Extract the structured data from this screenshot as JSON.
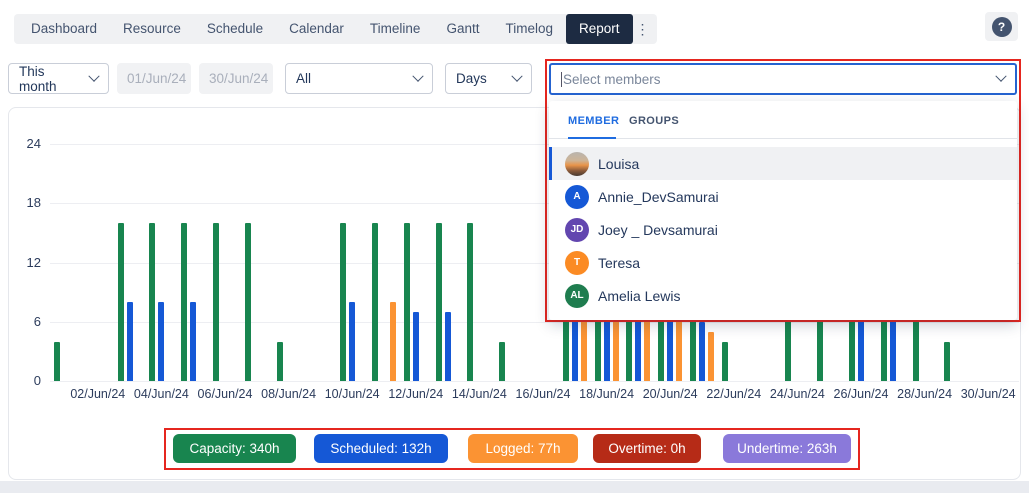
{
  "nav": {
    "tabs": [
      {
        "label": "Dashboard"
      },
      {
        "label": "Resource"
      },
      {
        "label": "Schedule"
      },
      {
        "label": "Calendar"
      },
      {
        "label": "Timeline"
      },
      {
        "label": "Gantt"
      },
      {
        "label": "Timelog"
      },
      {
        "label": "Report"
      }
    ],
    "active_tab": "Report",
    "more_icon": "⋮"
  },
  "help": {
    "icon": "?"
  },
  "filters": {
    "period": {
      "value": "This month"
    },
    "start_date": {
      "value": "01/Jun/24"
    },
    "end_date": {
      "value": "30/Jun/24"
    },
    "scope": {
      "value": "All"
    },
    "granularity": {
      "value": "Days"
    },
    "members": {
      "placeholder": "Select members"
    }
  },
  "member_dropdown": {
    "tabs": [
      {
        "label": "MEMBER"
      },
      {
        "label": "GROUPS"
      }
    ],
    "active_tab": "MEMBER",
    "members": [
      {
        "name": "Louisa",
        "avatar": "photo",
        "highlighted": true
      },
      {
        "name": "Annie_DevSamurai",
        "initials": "A",
        "color": "#1558d6"
      },
      {
        "name": "Joey _ Devsamurai",
        "initials": "JD",
        "color": "#6246af"
      },
      {
        "name": "Teresa",
        "initials": "T",
        "color": "#fb8b24"
      },
      {
        "name": "Amelia Lewis",
        "initials": "AL",
        "color": "#1f7d4f"
      }
    ]
  },
  "chart_data": {
    "type": "bar",
    "x_unit": "days of June 2024",
    "days": [
      1,
      2,
      3,
      4,
      5,
      6,
      7,
      8,
      9,
      10,
      11,
      12,
      13,
      14,
      15,
      16,
      17,
      18,
      19,
      20,
      21,
      22,
      23,
      24,
      25,
      26,
      27,
      28,
      29,
      30
    ],
    "x_tick_days": [
      2,
      4,
      6,
      8,
      10,
      12,
      14,
      16,
      18,
      20,
      22,
      24,
      26,
      28,
      30
    ],
    "x_tick_labels": [
      "02/Jun/24",
      "04/Jun/24",
      "06/Jun/24",
      "08/Jun/24",
      "10/Jun/24",
      "12/Jun/24",
      "14/Jun/24",
      "16/Jun/24",
      "18/Jun/24",
      "20/Jun/24",
      "22/Jun/24",
      "24/Jun/24",
      "26/Jun/24",
      "28/Jun/24",
      "30/Jun/24"
    ],
    "ylim": [
      0,
      24
    ],
    "yticks": [
      0,
      6,
      12,
      18,
      24
    ],
    "grid": true,
    "series": [
      {
        "name": "Capacity",
        "color": "#18854f",
        "values": [
          4,
          0,
          16,
          16,
          16,
          16,
          16,
          4,
          0,
          16,
          16,
          16,
          16,
          16,
          4,
          0,
          16,
          16,
          16,
          16,
          16,
          4,
          0,
          16,
          16,
          16,
          16,
          16,
          4,
          0
        ]
      },
      {
        "name": "Scheduled",
        "color": "#1558d6",
        "values": [
          0,
          0,
          8,
          8,
          8,
          0,
          0,
          0,
          0,
          8,
          0,
          7,
          7,
          0,
          0,
          0,
          16,
          16,
          16,
          16,
          6,
          0,
          0,
          0,
          0,
          8,
          8,
          0,
          0,
          0
        ]
      },
      {
        "name": "Logged",
        "color": "#fb9333",
        "values": [
          0,
          0,
          0,
          0,
          0,
          0,
          0,
          0,
          0,
          0,
          8,
          0,
          0,
          0,
          0,
          0,
          16,
          16,
          16,
          16,
          5,
          0,
          0,
          0,
          0,
          0,
          0,
          0,
          0,
          0
        ]
      }
    ],
    "legend_position": "bottom"
  },
  "legend": [
    {
      "label": "Capacity: 340h",
      "color": "#18854f"
    },
    {
      "label": "Scheduled: 132h",
      "color": "#1558d6"
    },
    {
      "label": "Logged: 77h",
      "color": "#fb9333"
    },
    {
      "label": "Overtime: 0h",
      "color": "#b62b17"
    },
    {
      "label": "Undertime: 263h",
      "color": "#8a79da"
    }
  ],
  "annotations": {
    "highlight_color": "#e5261f"
  }
}
